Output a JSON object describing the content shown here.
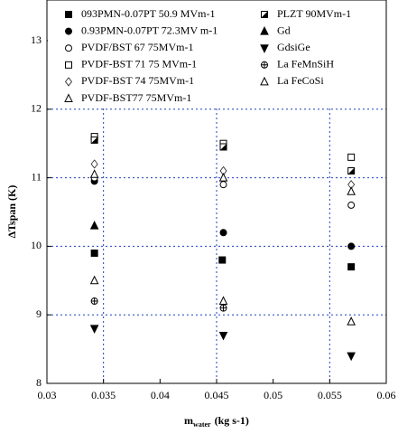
{
  "chart_data": {
    "type": "scatter",
    "ylabel": "ΔTspan (K)",
    "xlabel": "m",
    "xlabel_sub": "water",
    "xlabel_unit": "(kg s-1)",
    "xlim": [
      0.03,
      0.06
    ],
    "xticks": [
      0.03,
      0.035,
      0.04,
      0.045,
      0.05,
      0.055,
      0.06
    ],
    "ylim": [
      8,
      13
    ],
    "yticks": [
      8,
      9,
      10,
      11,
      12,
      13
    ],
    "xgrid": [
      0.035,
      0.045,
      0.055
    ],
    "ygrid": [
      9,
      10,
      11,
      12
    ],
    "grid_color": "#1f3fbf",
    "series": [
      {
        "name": "093PMN-0.07PT 50.9 MVm-1",
        "marker": "square-filled",
        "color": "#000000",
        "x": [
          0.0342,
          0.0455,
          0.0569
        ],
        "values": [
          9.9,
          9.8,
          9.7
        ]
      },
      {
        "name": "0.93PMN-0.07PT 72.3MV m-1",
        "marker": "circle-filled",
        "color": "#000000",
        "x": [
          0.0342,
          0.0456,
          0.0569
        ],
        "values": [
          10.95,
          10.2,
          10.0
        ]
      },
      {
        "name": "PVDF/BST 67 75MVm-1",
        "marker": "circle-open",
        "color": "#000000",
        "x": [
          0.0342,
          0.0456,
          0.0569
        ],
        "values": [
          11.0,
          10.9,
          10.6
        ]
      },
      {
        "name": "PVDF-BST 71 75 MVm-1",
        "marker": "square-open",
        "color": "#000000",
        "x": [
          0.0342,
          0.0456,
          0.0569
        ],
        "values": [
          11.6,
          11.5,
          11.3
        ]
      },
      {
        "name": "PVDF-BST 74 75MVm-1",
        "marker": "diamond-open",
        "color": "#000000",
        "x": [
          0.0342,
          0.0456,
          0.0569
        ],
        "values": [
          11.2,
          11.1,
          10.9
        ]
      },
      {
        "name": "PVDF-BST77 75MVm-1",
        "marker": "triangle-open",
        "color": "#000000",
        "x": [
          0.0342,
          0.0456,
          0.0569
        ],
        "values": [
          11.05,
          11.0,
          10.8
        ]
      },
      {
        "name": "PLZT 90MVm-1",
        "marker": "square-half",
        "color": "#000000",
        "x": [
          0.0342,
          0.0456,
          0.0569
        ],
        "values": [
          11.55,
          11.45,
          11.1
        ]
      },
      {
        "name": "Gd",
        "marker": "triangle-filled",
        "color": "#000000",
        "x": [
          0.0342
        ],
        "values": [
          10.3
        ]
      },
      {
        "name": "GdsiGe",
        "marker": "triangle-down",
        "color": "#000000",
        "x": [
          0.0342,
          0.0456,
          0.0569
        ],
        "values": [
          8.8,
          8.7,
          8.4
        ]
      },
      {
        "name": "La FeMnSiH",
        "marker": "circle-cross",
        "color": "#000000",
        "x": [
          0.0342,
          0.0456
        ],
        "values": [
          9.2,
          9.1
        ]
      },
      {
        "name": "La FeCoSi",
        "marker": "triangle-open",
        "color": "#000000",
        "x": [
          0.0342,
          0.0456,
          0.0569
        ],
        "values": [
          9.5,
          9.2,
          8.9
        ]
      }
    ]
  }
}
